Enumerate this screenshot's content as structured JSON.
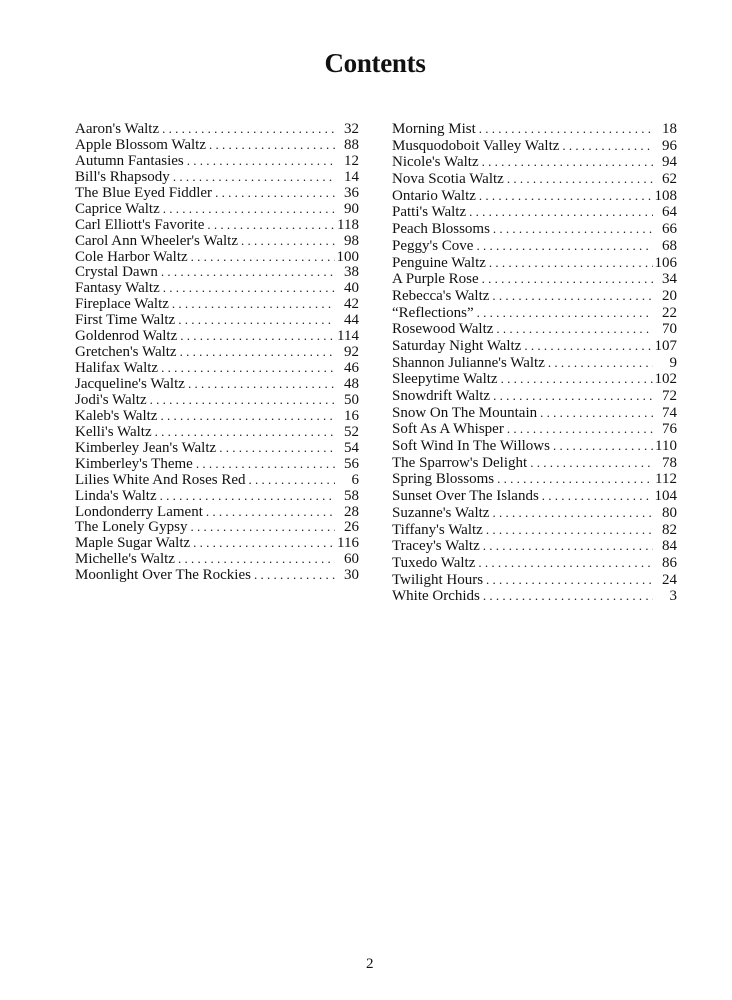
{
  "title": "Contents",
  "page_number": "2",
  "left_column": [
    {
      "name": "Aaron's Waltz",
      "page": "32"
    },
    {
      "name": "Apple Blossom Waltz",
      "page": "88"
    },
    {
      "name": "Autumn Fantasies",
      "page": "12"
    },
    {
      "name": "Bill's Rhapsody",
      "page": "14"
    },
    {
      "name": "The Blue Eyed Fiddler",
      "page": "36"
    },
    {
      "name": "Caprice Waltz",
      "page": "90"
    },
    {
      "name": "Carl Elliott's Favorite",
      "page": "118"
    },
    {
      "name": "Carol Ann Wheeler's Waltz",
      "page": "98"
    },
    {
      "name": "Cole Harbor Waltz",
      "page": "100"
    },
    {
      "name": "Crystal Dawn",
      "page": "38"
    },
    {
      "name": "Fantasy Waltz",
      "page": "40"
    },
    {
      "name": "Fireplace Waltz",
      "page": "42"
    },
    {
      "name": "First Time Waltz",
      "page": "44"
    },
    {
      "name": "Goldenrod Waltz",
      "page": "114"
    },
    {
      "name": "Gretchen's Waltz",
      "page": "92"
    },
    {
      "name": "Halifax Waltz",
      "page": "46"
    },
    {
      "name": "Jacqueline's Waltz",
      "page": "48"
    },
    {
      "name": "Jodi's Waltz",
      "page": "50"
    },
    {
      "name": "Kaleb's Waltz",
      "page": "16"
    },
    {
      "name": "Kelli's Waltz",
      "page": "52"
    },
    {
      "name": "Kimberley Jean's Waltz",
      "page": "54"
    },
    {
      "name": "Kimberley's Theme",
      "page": "56"
    },
    {
      "name": "Lilies White And Roses Red",
      "page": "6"
    },
    {
      "name": "Linda's Waltz",
      "page": "58"
    },
    {
      "name": "Londonderry Lament",
      "page": "28"
    },
    {
      "name": "The Lonely Gypsy",
      "page": "26"
    },
    {
      "name": "Maple Sugar Waltz",
      "page": "116"
    },
    {
      "name": "Michelle's Waltz",
      "page": "60"
    },
    {
      "name": "Moonlight Over The Rockies",
      "page": "30"
    }
  ],
  "right_column": [
    {
      "name": "Morning Mist",
      "page": "18"
    },
    {
      "name": "Musquodoboit Valley Waltz",
      "page": "96"
    },
    {
      "name": "Nicole's Waltz",
      "page": "94"
    },
    {
      "name": "Nova Scotia Waltz",
      "page": "62"
    },
    {
      "name": "Ontario Waltz",
      "page": "108"
    },
    {
      "name": "Patti's Waltz",
      "page": "64"
    },
    {
      "name": "Peach Blossoms",
      "page": "66"
    },
    {
      "name": "Peggy's Cove",
      "page": "68"
    },
    {
      "name": "Penguine Waltz",
      "page": "106"
    },
    {
      "name": "A Purple Rose",
      "page": "34"
    },
    {
      "name": "Rebecca's Waltz",
      "page": "20"
    },
    {
      "name": "“Reflections”",
      "page": "22"
    },
    {
      "name": "Rosewood Waltz",
      "page": "70"
    },
    {
      "name": "Saturday Night Waltz",
      "page": "107"
    },
    {
      "name": "Shannon Julianne's Waltz",
      "page": "9"
    },
    {
      "name": "Sleepytime Waltz",
      "page": "102"
    },
    {
      "name": "Snowdrift Waltz",
      "page": "72"
    },
    {
      "name": "Snow On The Mountain",
      "page": "74"
    },
    {
      "name": "Soft As A Whisper",
      "page": "76"
    },
    {
      "name": "Soft Wind In The Willows",
      "page": "110"
    },
    {
      "name": "The Sparrow's Delight",
      "page": "78"
    },
    {
      "name": "Spring Blossoms",
      "page": "112"
    },
    {
      "name": "Sunset Over The Islands",
      "page": "104"
    },
    {
      "name": "Suzanne's Waltz",
      "page": "80"
    },
    {
      "name": "Tiffany's Waltz",
      "page": "82"
    },
    {
      "name": "Tracey's Waltz",
      "page": "84"
    },
    {
      "name": "Tuxedo Waltz",
      "page": "86"
    },
    {
      "name": "Twilight Hours",
      "page": "24"
    },
    {
      "name": "White Orchids",
      "page": "3"
    }
  ]
}
